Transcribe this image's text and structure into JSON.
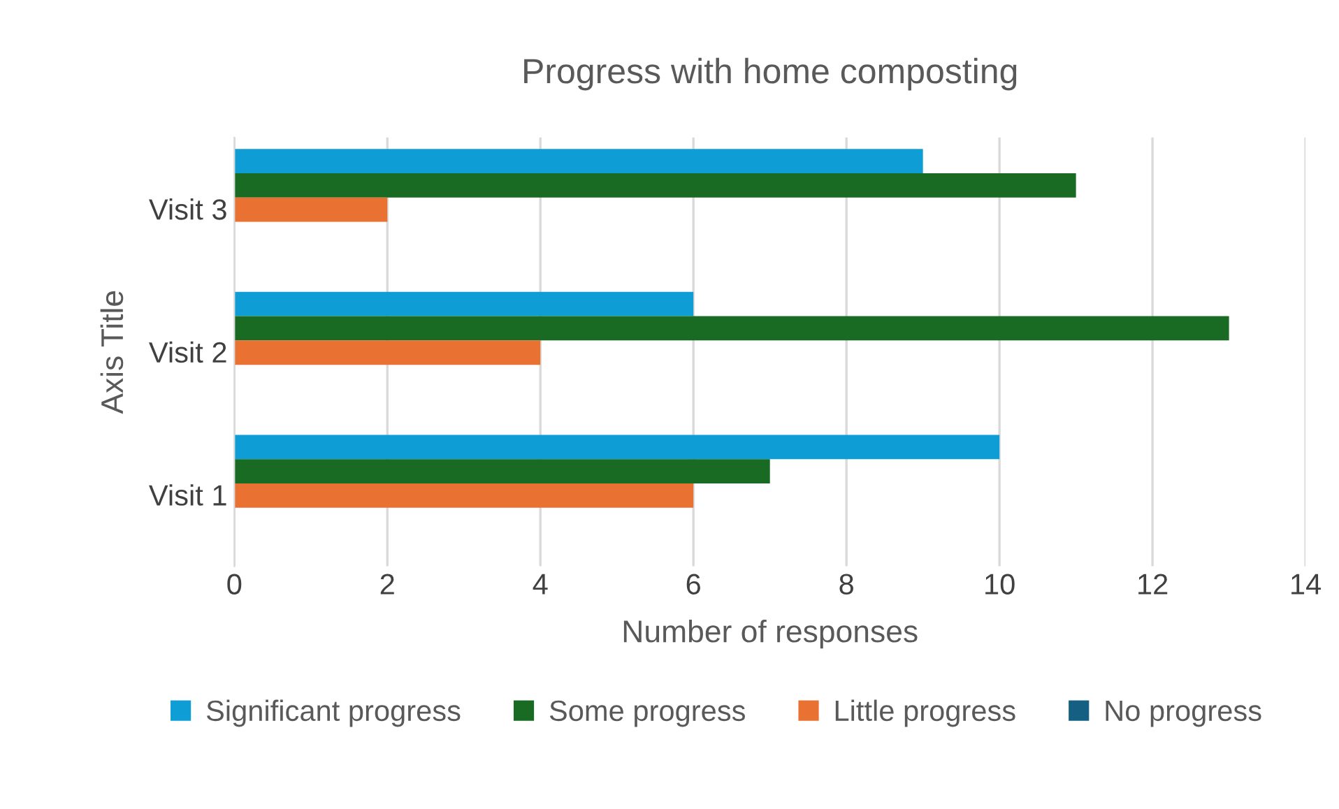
{
  "chart_data": {
    "type": "bar",
    "orientation": "horizontal",
    "title": "Progress with home composting",
    "xlabel": "Number of responses",
    "ylabel": "Axis Title",
    "categories": [
      "Visit 3",
      "Visit 2",
      "Visit 1"
    ],
    "series": [
      {
        "name": "Significant progress",
        "color": "#0e9ed5",
        "values": [
          9,
          6,
          10
        ]
      },
      {
        "name": "Some progress",
        "color": "#196b24",
        "values": [
          11,
          13,
          7
        ]
      },
      {
        "name": "Little progress",
        "color": "#e97132",
        "values": [
          2,
          4,
          6
        ]
      },
      {
        "name": "No progress",
        "color": "#156082",
        "values": [
          0,
          0,
          0
        ]
      }
    ],
    "xlim": [
      0,
      14
    ],
    "xticks": [
      0,
      2,
      4,
      6,
      8,
      10,
      12,
      14
    ],
    "grid": "x",
    "legend": "bottom"
  }
}
